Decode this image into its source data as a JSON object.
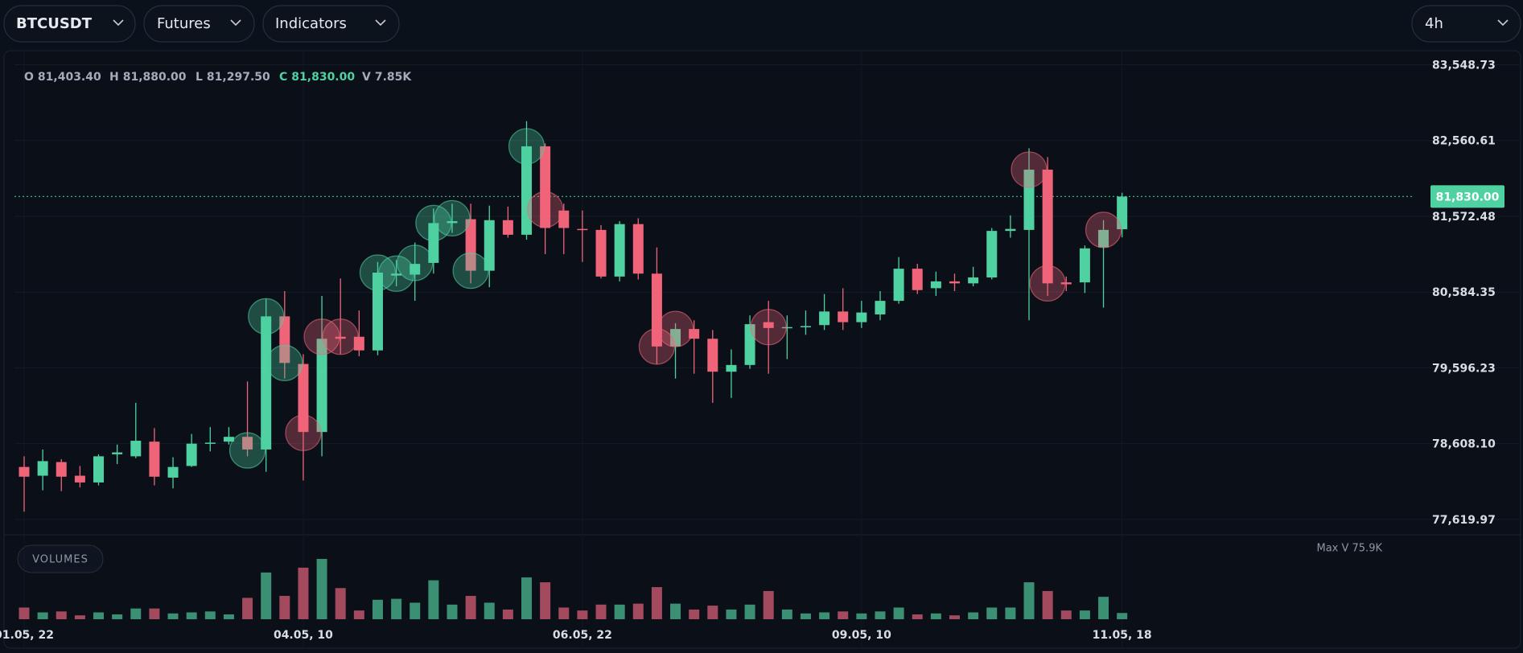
{
  "toolbar": {
    "symbol": "BTCUSDT",
    "market": "Futures",
    "indicators": "Indicators",
    "interval": "4h"
  },
  "chart_data": {
    "type": "candlestick",
    "categories": [
      "01.05, 22",
      null,
      null,
      null,
      null,
      null,
      null,
      null,
      null,
      null,
      null,
      null,
      null,
      null,
      null,
      "04.05, 10",
      null,
      null,
      null,
      null,
      null,
      null,
      null,
      null,
      null,
      null,
      null,
      null,
      null,
      null,
      "06.05, 22",
      null,
      null,
      null,
      null,
      null,
      null,
      null,
      null,
      null,
      null,
      null,
      null,
      null,
      null,
      "09.05, 10",
      null,
      null,
      null,
      null,
      null,
      null,
      null,
      null,
      null,
      null,
      null,
      null,
      null,
      "11.05, 18"
    ],
    "open": [
      78304,
      78190,
      78368,
      78190,
      78102,
      78469,
      78443,
      78634,
      78165,
      78317,
      78608,
      78634,
      78697,
      78532,
      80268,
      79647,
      78760,
      80002,
      80002,
      79824,
      80800,
      80812,
      80965,
      81484,
      81535,
      80863,
      81522,
      81332,
      82485,
      81648,
      81408,
      81395,
      80787,
      81471,
      80825,
      79875,
      80103,
      79976,
      79546,
      79634,
      80192,
      80116,
      80128,
      80154,
      80331,
      80192,
      80293,
      80470,
      80889,
      80635,
      80724,
      80698,
      80775,
      81382,
      81395,
      82181,
      80711,
      80711,
      81167,
      81403.4
    ],
    "high": [
      78443,
      78532,
      78406,
      78317,
      78469,
      78596,
      79140,
      78811,
      78431,
      78735,
      78824,
      78824,
      79419,
      80496,
      80597,
      79774,
      80534,
      80762,
      80344,
      80977,
      81003,
      81231,
      81674,
      81737,
      81737,
      81712,
      81699,
      82814,
      82523,
      81737,
      81648,
      81458,
      81509,
      81547,
      81167,
      80179,
      80217,
      80090,
      79837,
      80280,
      80470,
      80280,
      80344,
      80559,
      80635,
      80470,
      80597,
      81041,
      80952,
      80851,
      80825,
      80914,
      81420,
      81585,
      82459,
      82345,
      80787,
      81192,
      81522,
      81880
    ],
    "low": [
      77721,
      78000,
      77988,
      78038,
      78064,
      78342,
      78418,
      78064,
      78025,
      78304,
      78507,
      78596,
      78443,
      78241,
      79457,
      78127,
      78443,
      79774,
      79748,
      79761,
      80660,
      80470,
      80825,
      81357,
      80698,
      80648,
      81294,
      81268,
      81078,
      81078,
      80977,
      80762,
      80724,
      80749,
      79647,
      79457,
      79520,
      79140,
      79204,
      79584,
      79520,
      79710,
      80027,
      80090,
      80090,
      80116,
      80217,
      80432,
      80559,
      80534,
      80597,
      80660,
      80749,
      81294,
      80217,
      80534,
      80597,
      80572,
      80382,
      81297.5
    ],
    "close": [
      78177,
      78380,
      78177,
      78102,
      78443,
      78494,
      78646,
      78177,
      78304,
      78608,
      78621,
      78697,
      78532,
      80268,
      79660,
      78760,
      79976,
      79976,
      79824,
      80838,
      80825,
      80952,
      81484,
      81509,
      80863,
      81522,
      81332,
      82485,
      81420,
      81420,
      81395,
      80787,
      81471,
      80825,
      79875,
      80103,
      79976,
      79546,
      79634,
      80166,
      80116,
      80128,
      80141,
      80331,
      80192,
      80318,
      80470,
      80889,
      80610,
      80724,
      80698,
      80775,
      81382,
      81408,
      82181,
      80698,
      80686,
      81154,
      81395,
      81830
    ],
    "ylim": [
      77430.1,
      83700.8
    ],
    "yticks": [
      {
        "value": 83548.73,
        "label": "83,548.73"
      },
      {
        "value": 82560.61,
        "label": "82,560.61"
      },
      {
        "value": 81572.48,
        "label": "81,572.48"
      },
      {
        "value": 80584.35,
        "label": "80,584.35"
      },
      {
        "value": 79596.23,
        "label": "79,596.23"
      },
      {
        "value": 78608.1,
        "label": "78,608.10"
      },
      {
        "value": 77619.97,
        "label": "77,619.97"
      }
    ],
    "grid": true,
    "up_color": "#4fd1a1",
    "down_color": "#f0647a",
    "ohlc_header": [
      {
        "label": "O",
        "value": "81,403.40",
        "color": "#a3acba"
      },
      {
        "label": "H",
        "value": "81,880.00",
        "color": "#a3acba"
      },
      {
        "label": "L",
        "value": "81,297.50",
        "color": "#a3acba"
      },
      {
        "label": "C",
        "value": "81,830.00",
        "color": "#4fd1a1"
      },
      {
        "label": "V",
        "value": "7.85K",
        "color": "#a3acba"
      }
    ],
    "last_price": {
      "value": 81830,
      "label": "81,830.00"
    },
    "buy_markers": [
      null,
      null,
      null,
      null,
      null,
      null,
      null,
      null,
      null,
      null,
      null,
      null,
      78519,
      80268,
      79660,
      null,
      null,
      null,
      null,
      80838,
      80825,
      80965,
      81484,
      81547,
      80863,
      null,
      null,
      82485,
      null,
      null,
      null,
      null,
      null,
      null,
      null,
      null,
      null,
      null,
      null,
      null,
      null,
      null,
      null,
      null,
      null,
      null,
      null,
      null,
      null,
      null,
      null,
      null,
      null,
      null,
      null,
      null,
      null,
      null,
      null,
      null
    ],
    "sell_markers": [
      null,
      null,
      null,
      null,
      null,
      null,
      null,
      null,
      null,
      null,
      null,
      null,
      null,
      null,
      null,
      78748,
      80002,
      80002,
      null,
      null,
      null,
      null,
      null,
      null,
      null,
      null,
      null,
      null,
      81661,
      null,
      null,
      null,
      null,
      null,
      79875,
      80103,
      null,
      null,
      null,
      null,
      80128,
      null,
      null,
      null,
      null,
      null,
      null,
      null,
      null,
      null,
      null,
      null,
      null,
      null,
      82181,
      80698,
      null,
      null,
      81395,
      null
    ],
    "volume_panel": {
      "title": "VOLUMES",
      "max": {
        "value": 75.9,
        "label": "Max V 75.9K"
      },
      "values": [
        14.7,
        8.6,
        9.8,
        4.9,
        8.6,
        6.1,
        13.5,
        13.5,
        7.3,
        8.6,
        9.8,
        6.1,
        26.9,
        58.8,
        29.4,
        64.9,
        75.9,
        39.2,
        11.0,
        24.5,
        25.7,
        20.8,
        49.0,
        18.4,
        29.4,
        20.8,
        12.2,
        52.6,
        46.5,
        14.7,
        11.0,
        18.4,
        18.4,
        19.6,
        40.4,
        19.6,
        12.2,
        17.1,
        12.2,
        18.4,
        35.5,
        12.2,
        7.3,
        8.6,
        9.8,
        7.3,
        9.8,
        14.7,
        6.1,
        7.3,
        4.9,
        8.6,
        14.7,
        14.7,
        46.5,
        35.5,
        11.0,
        11.0,
        28.2,
        7.85
      ],
      "up_color": "#3b8f72",
      "down_color": "#a34a5e"
    }
  }
}
